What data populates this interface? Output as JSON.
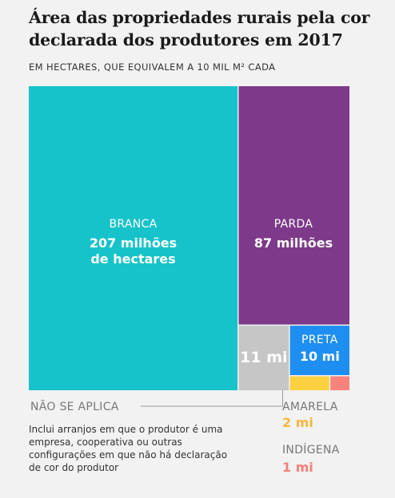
{
  "chart_data": {
    "type": "treemap",
    "title": "Área das propriedades rurais pela cor declarada dos produtores em 2017",
    "subtitle": "EM HECTARES, QUE EQUIVALEM A 10 MIL M² CADA",
    "unit": "hectares",
    "items": [
      {
        "name": "BRANCA",
        "value": 207,
        "value_label": "207 milhões",
        "value_label_2": "de hectares",
        "color": "#17c3ca"
      },
      {
        "name": "PARDA",
        "value": 87,
        "value_label": "87 milhões",
        "color": "#7d3a8a"
      },
      {
        "name": "NÃO SE APLICA",
        "value": 11,
        "value_label": "11 mi",
        "color": "#c6c6c6"
      },
      {
        "name": "PRETA",
        "value": 10,
        "value_label": "10 mi",
        "color": "#1e8ef0"
      },
      {
        "name": "AMARELA",
        "value": 2,
        "value_label": "2 mi",
        "color": "#fdd040"
      },
      {
        "name": "INDÍGENA",
        "value": 1,
        "value_label": "1 mi",
        "color": "#f8837c"
      }
    ],
    "note": "Inclui arranjos em que o produtor é uma empresa, cooperativa ou outras configurações em que não há declaração de cor do produtor"
  }
}
